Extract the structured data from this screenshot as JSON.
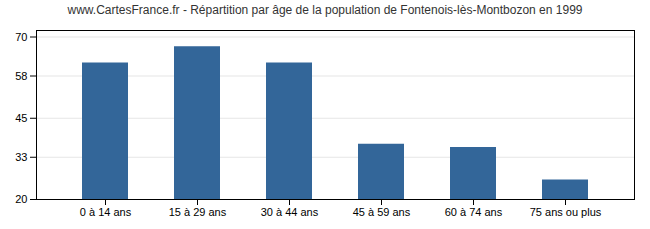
{
  "chart_data": {
    "type": "bar",
    "title": "www.CartesFrance.fr - Répartition par âge de la population de Fontenois-lès-Montbozon en 1999",
    "categories": [
      "0 à 14 ans",
      "15 à 29 ans",
      "30 à 44 ans",
      "45 à 59 ans",
      "60 à 74 ans",
      "75 ans ou plus"
    ],
    "values": [
      62,
      67,
      62,
      37,
      36,
      26
    ],
    "color": "#336699",
    "ylim": [
      20,
      72
    ],
    "yticks": [
      20,
      33,
      45,
      58,
      70
    ],
    "grid": true
  }
}
